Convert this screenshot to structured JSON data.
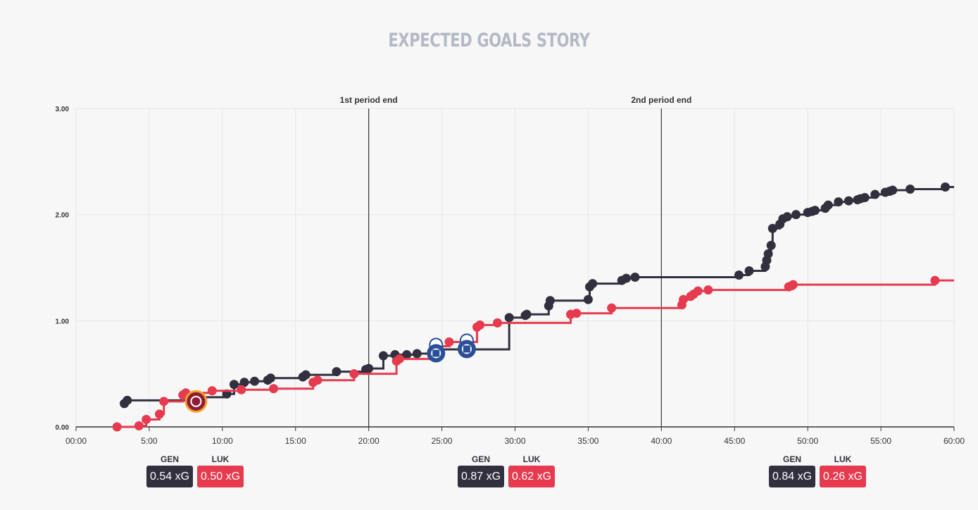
{
  "title": "EXPECTED GOALS STORY",
  "colors": {
    "home": "#32303f",
    "away": "#e63b4e",
    "title": "#b4b9c6"
  },
  "chart_data": {
    "type": "line",
    "step": true,
    "title": "EXPECTED GOALS STORY",
    "xlabel": "",
    "ylabel": "",
    "xlim": [
      0,
      60
    ],
    "ylim": [
      0,
      3
    ],
    "x_ticks": [
      "00:00",
      "5:00",
      "10:00",
      "15:00",
      "20:00",
      "25:00",
      "30:00",
      "35:00",
      "40:00",
      "45:00",
      "50:00",
      "55:00",
      "60:00"
    ],
    "y_ticks": [
      "0.00",
      "1.00",
      "2.00",
      "3.00"
    ],
    "annotations": [
      {
        "x": 20,
        "label": "1st period end"
      },
      {
        "x": 40,
        "label": "2nd period end"
      }
    ],
    "series": [
      {
        "name": "GEN",
        "color": "#32303f",
        "x": [
          3.3,
          3.5,
          8.2,
          10.3,
          10.8,
          11.5,
          12.2,
          13.1,
          13.3,
          15.5,
          15.7,
          17.8,
          19.8,
          20.0,
          21.0,
          21.8,
          22.6,
          23.3,
          24.5,
          24.8,
          29.6,
          30.7,
          30.8,
          32.3,
          32.4,
          35.0,
          35.1,
          35.3,
          37.3,
          37.6,
          38.2,
          45.3,
          46.0,
          47.1,
          47.2,
          47.3,
          47.5,
          47.6,
          48.1,
          48.3,
          48.6,
          49.2,
          50.0,
          50.3,
          50.5,
          51.2,
          51.4,
          52.1,
          52.8,
          53.4,
          53.6,
          53.9,
          54.6,
          55.3,
          55.6,
          55.8,
          57.0,
          59.4
        ],
        "values": [
          0.22,
          0.25,
          0.28,
          0.31,
          0.4,
          0.42,
          0.43,
          0.44,
          0.46,
          0.47,
          0.49,
          0.52,
          0.54,
          0.55,
          0.67,
          0.68,
          0.68,
          0.69,
          0.72,
          0.73,
          1.03,
          1.05,
          1.06,
          1.14,
          1.19,
          1.2,
          1.32,
          1.35,
          1.38,
          1.4,
          1.41,
          1.43,
          1.47,
          1.51,
          1.57,
          1.63,
          1.71,
          1.87,
          1.91,
          1.96,
          1.98,
          2.0,
          2.02,
          2.03,
          2.04,
          2.06,
          2.09,
          2.12,
          2.13,
          2.14,
          2.15,
          2.16,
          2.19,
          2.21,
          2.22,
          2.23,
          2.24,
          2.26
        ],
        "goals": [
          8.2
        ]
      },
      {
        "name": "LUK",
        "color": "#e63b4e",
        "x": [
          2.8,
          4.3,
          4.8,
          5.7,
          6.0,
          7.3,
          7.5,
          9.3,
          11.3,
          13.5,
          16.2,
          16.5,
          19.0,
          21.9,
          22.1,
          24.5,
          25.5,
          27.4,
          27.6,
          28.8,
          33.8,
          34.2,
          36.6,
          41.4,
          41.5,
          42.0,
          42.2,
          42.5,
          43.2,
          48.7,
          48.9,
          49.0,
          58.7
        ],
        "values": [
          0.0,
          0.01,
          0.07,
          0.12,
          0.24,
          0.3,
          0.32,
          0.34,
          0.35,
          0.36,
          0.42,
          0.44,
          0.5,
          0.62,
          0.64,
          0.76,
          0.8,
          0.94,
          0.96,
          0.98,
          1.06,
          1.07,
          1.12,
          1.15,
          1.2,
          1.23,
          1.25,
          1.28,
          1.29,
          1.32,
          1.33,
          1.34,
          1.38
        ],
        "goals": [
          24.6,
          26.7
        ]
      }
    ],
    "period_summary": [
      {
        "x": 5,
        "home_label": "GEN",
        "home_value": "0.54 xG",
        "away_label": "LUK",
        "away_value": "0.50 xG"
      },
      {
        "x": 27,
        "home_label": "GEN",
        "home_value": "0.87 xG",
        "away_label": "LUK",
        "away_value": "0.62 xG"
      },
      {
        "x": 49,
        "home_label": "GEN",
        "home_value": "0.84 xG",
        "away_label": "LUK",
        "away_value": "0.26 xG"
      }
    ]
  }
}
